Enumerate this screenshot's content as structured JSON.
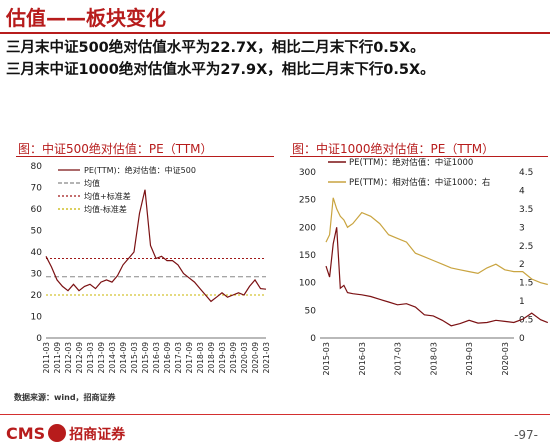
{
  "page": {
    "title": "估值——板块变化",
    "bullets": [
      "三月末中证500绝对估值水平为22.7X，相比二月末下行0.5X。",
      "三月末中证1000绝对估值水平为27.9X，相比二月末下行0.5X。"
    ],
    "source": "数据来源：wind，招商证券",
    "logo_en": "CMS",
    "logo_cn": "招商证券",
    "page_number": "-97-"
  },
  "chart_data": [
    {
      "type": "line",
      "title": "图：中证500绝对估值：PE（TTM）",
      "x_tick_labels": [
        "2011-03",
        "2011-09",
        "2012-03",
        "2012-09",
        "2013-03",
        "2013-09",
        "2014-03",
        "2014-09",
        "2015-03",
        "2015-09",
        "2016-03",
        "2016-09",
        "2017-03",
        "2017-09",
        "2018-03",
        "2018-09",
        "2019-03",
        "2019-09",
        "2020-03",
        "2020-09",
        "2021-03"
      ],
      "ylim": [
        0,
        80
      ],
      "y_ticks": [
        0,
        10,
        20,
        30,
        40,
        50,
        60,
        70,
        80
      ],
      "legend_position": "top-left",
      "series": [
        {
          "name": "PE(TTM)：绝对估值：中证500",
          "color": "#7b1113",
          "style": "solid",
          "x": [
            0,
            0.5,
            1,
            1.5,
            2,
            2.5,
            3,
            3.5,
            4,
            4.5,
            5,
            5.5,
            6,
            6.5,
            7,
            7.5,
            8,
            8.5,
            9,
            9.5,
            10,
            10.5,
            11,
            11.5,
            12,
            12.5,
            13,
            13.5,
            14,
            14.5,
            15,
            15.5,
            16,
            16.5,
            17,
            17.5,
            18,
            18.5,
            19,
            19.5,
            20
          ],
          "values": [
            38,
            33,
            27,
            24,
            22,
            25,
            22,
            24,
            25,
            23,
            26,
            27,
            26,
            29,
            34,
            37,
            40,
            58,
            69,
            43,
            37,
            38,
            36,
            36,
            34,
            30,
            28,
            26,
            23,
            20,
            17,
            19,
            21,
            19,
            20,
            21,
            20,
            24,
            27,
            23,
            22.7
          ]
        },
        {
          "name": "均值",
          "color": "#888888",
          "style": "dashed",
          "value": 28.5
        },
        {
          "name": "均值+标准差",
          "color": "#a01818",
          "style": "dotted",
          "value": 37
        },
        {
          "name": "均值-标准差",
          "color": "#c8b400",
          "style": "dotted",
          "value": 20
        }
      ]
    },
    {
      "type": "line",
      "title": "图：中证1000绝对估值：PE（TTM）",
      "x_tick_labels": [
        "2015-03",
        "2016-03",
        "2017-03",
        "2018-03",
        "2019-03",
        "2020-03"
      ],
      "ylim_left": [
        0,
        300
      ],
      "y_ticks_left": [
        0,
        50,
        100,
        150,
        200,
        250,
        300
      ],
      "ylim_right": [
        0,
        4.5
      ],
      "y_ticks_right": [
        0,
        0.5,
        1,
        1.5,
        2,
        2.5,
        3,
        3.5,
        4,
        4.5
      ],
      "legend_position": "top-left",
      "series": [
        {
          "name": "PE(TTM)：绝对估值：中证1000",
          "color": "#7b1113",
          "axis": "left",
          "x": [
            0,
            0.1,
            0.2,
            0.3,
            0.4,
            0.5,
            0.6,
            0.75,
            1,
            1.25,
            1.5,
            1.75,
            2,
            2.25,
            2.5,
            2.75,
            3,
            3.25,
            3.5,
            3.75,
            4,
            4.25,
            4.5,
            4.75,
            5,
            5.25,
            5.5,
            5.75,
            6,
            6.2
          ],
          "values": [
            130,
            110,
            170,
            200,
            90,
            95,
            82,
            80,
            78,
            75,
            70,
            65,
            60,
            62,
            56,
            42,
            40,
            32,
            22,
            26,
            32,
            27,
            28,
            32,
            30,
            28,
            34,
            45,
            33,
            27.9
          ]
        },
        {
          "name": "PE(TTM)：相对估值：中证1000：右",
          "color": "#c9a440",
          "axis": "right",
          "x": [
            0,
            0.1,
            0.2,
            0.3,
            0.4,
            0.5,
            0.6,
            0.75,
            1,
            1.25,
            1.5,
            1.75,
            2,
            2.25,
            2.5,
            2.75,
            3,
            3.25,
            3.5,
            3.75,
            4,
            4.25,
            4.5,
            4.75,
            5,
            5.25,
            5.5,
            5.75,
            6,
            6.2
          ],
          "values": [
            2.6,
            2.8,
            3.8,
            3.5,
            3.3,
            3.2,
            3.0,
            3.1,
            3.4,
            3.3,
            3.1,
            2.8,
            2.7,
            2.6,
            2.3,
            2.2,
            2.1,
            2.0,
            1.9,
            1.85,
            1.8,
            1.75,
            1.9,
            2.0,
            1.85,
            1.8,
            1.8,
            1.6,
            1.5,
            1.45
          ]
        }
      ]
    }
  ]
}
